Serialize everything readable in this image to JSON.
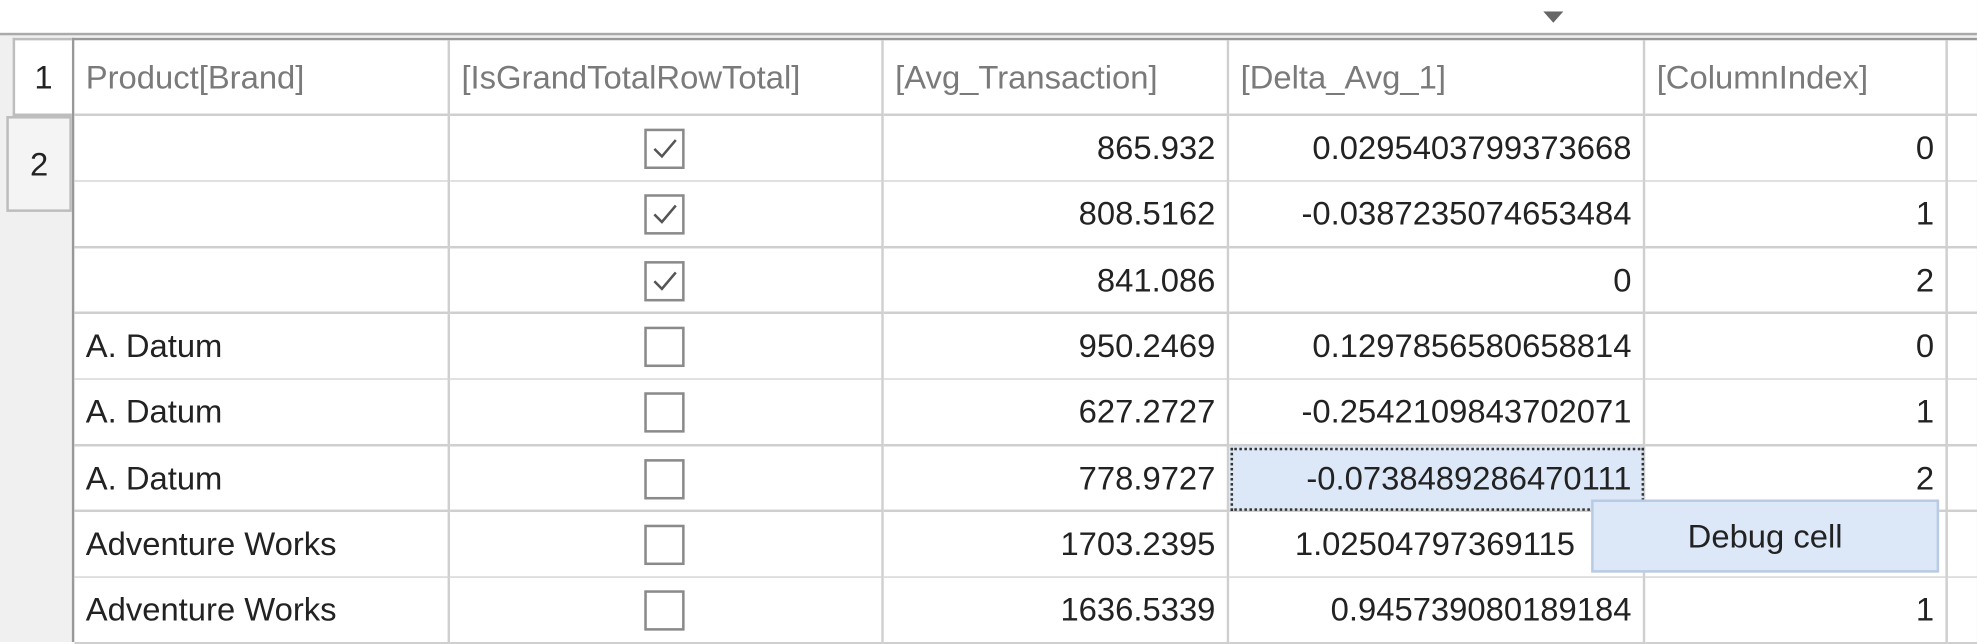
{
  "tabs": [
    "1",
    "2"
  ],
  "table": {
    "columns": [
      "Product[Brand]",
      "[IsGrandTotalRowTotal]",
      "[Avg_Transaction]",
      "[Delta_Avg_1]",
      "[ColumnIndex]"
    ],
    "rows": [
      [
        null,
        true,
        "865.932",
        "0.0295403799373668",
        "0"
      ],
      [
        null,
        true,
        "808.5162",
        "-0.0387235074653484",
        "1"
      ],
      [
        null,
        true,
        "841.086",
        "0",
        "2"
      ],
      [
        "A. Datum",
        false,
        "950.2469",
        "0.1297856580658814",
        "0"
      ],
      [
        "A. Datum",
        false,
        "627.2727",
        "-0.2542109843702071",
        "1"
      ],
      [
        "A. Datum",
        false,
        "778.9727",
        "-0.0738489286470111",
        "2"
      ],
      [
        "Adventure Works",
        false,
        "1703.2395",
        "1.02504797369115",
        null
      ],
      [
        "Adventure Works",
        false,
        "1636.5339",
        "0.945739080189184",
        "1"
      ]
    ]
  },
  "context_menu": {
    "item": "Debug cell"
  }
}
